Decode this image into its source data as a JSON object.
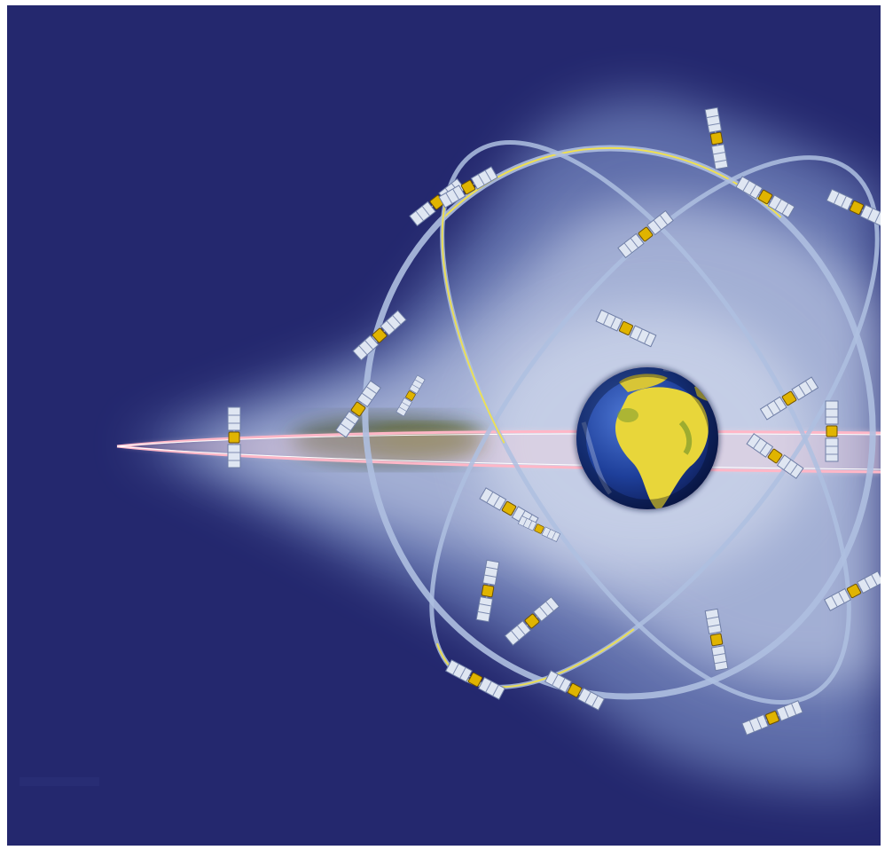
{
  "scene": {
    "kind": "satellite-constellation-illustration",
    "colors": {
      "space": "#24286e",
      "glow": "#c9d8f2",
      "orbit_ring": "#aebfe0",
      "orbit_highlight": "#f2e24a",
      "plasma_trail": "#ffd6df",
      "earth_ocean": "#1e3f9a",
      "earth_land": "#e8d63a",
      "solar_panel": "#dfe6f2",
      "satellite_body": "#e0b400"
    },
    "object_counts": {
      "orbit_rings": 3,
      "satellites": 23,
      "earth": 1
    },
    "icons": [
      "earth-icon",
      "satellite-icon"
    ]
  }
}
